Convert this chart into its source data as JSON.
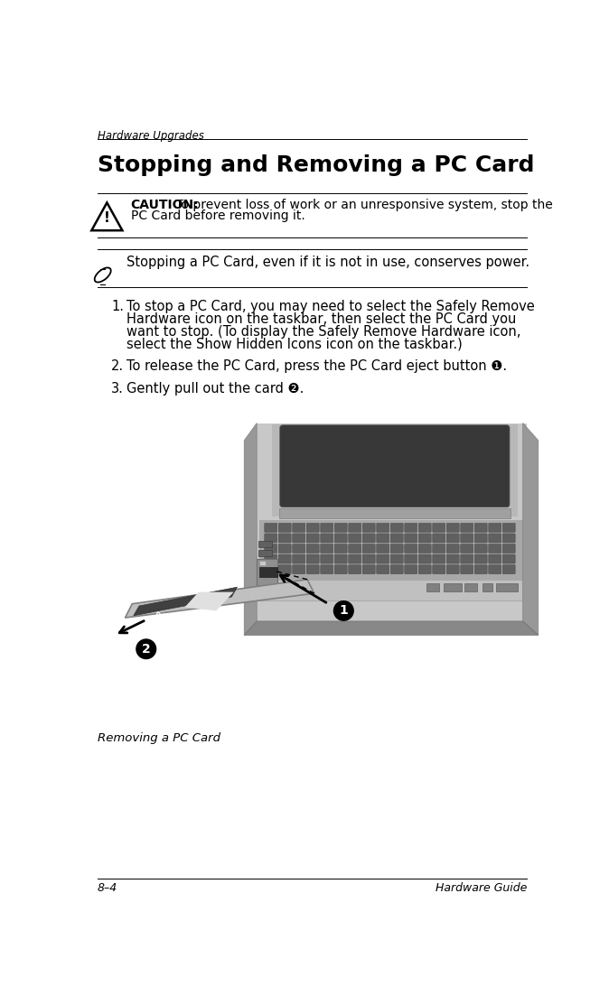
{
  "bg_color": "#ffffff",
  "header_text": "Hardware Upgrades",
  "title_text": "Stopping and Removing a PC Card",
  "caution_bold": "CAUTION:",
  "caution_rest": " To prevent loss of work or an unresponsive system, stop the\nPC Card before removing it.",
  "note_text": "Stopping a PC Card, even if it is not in use, conserves power.",
  "step1_num": "1.",
  "step1_text": "To stop a PC Card, you may need to select the Safely Remove\nHardware icon on the taskbar, then select the PC Card you\nwant to stop. (To display the Safely Remove Hardware icon,\nselect the Show Hidden Icons icon on the taskbar.)",
  "step2_num": "2.",
  "step2_text": "To release the PC Card, press the PC Card eject button ❶.",
  "step3_num": "3.",
  "step3_text": "Gently pull out the card ❷.",
  "caption_text": "Removing a PC Card",
  "footer_left": "8–4",
  "footer_right": "Hardware Guide",
  "text_color": "#000000",
  "gray_light": "#c8c8c8",
  "gray_mid": "#909090",
  "gray_dark": "#505050",
  "gray_darker": "#303030",
  "card_gray": "#b0b0b0",
  "card_dark": "#707070"
}
